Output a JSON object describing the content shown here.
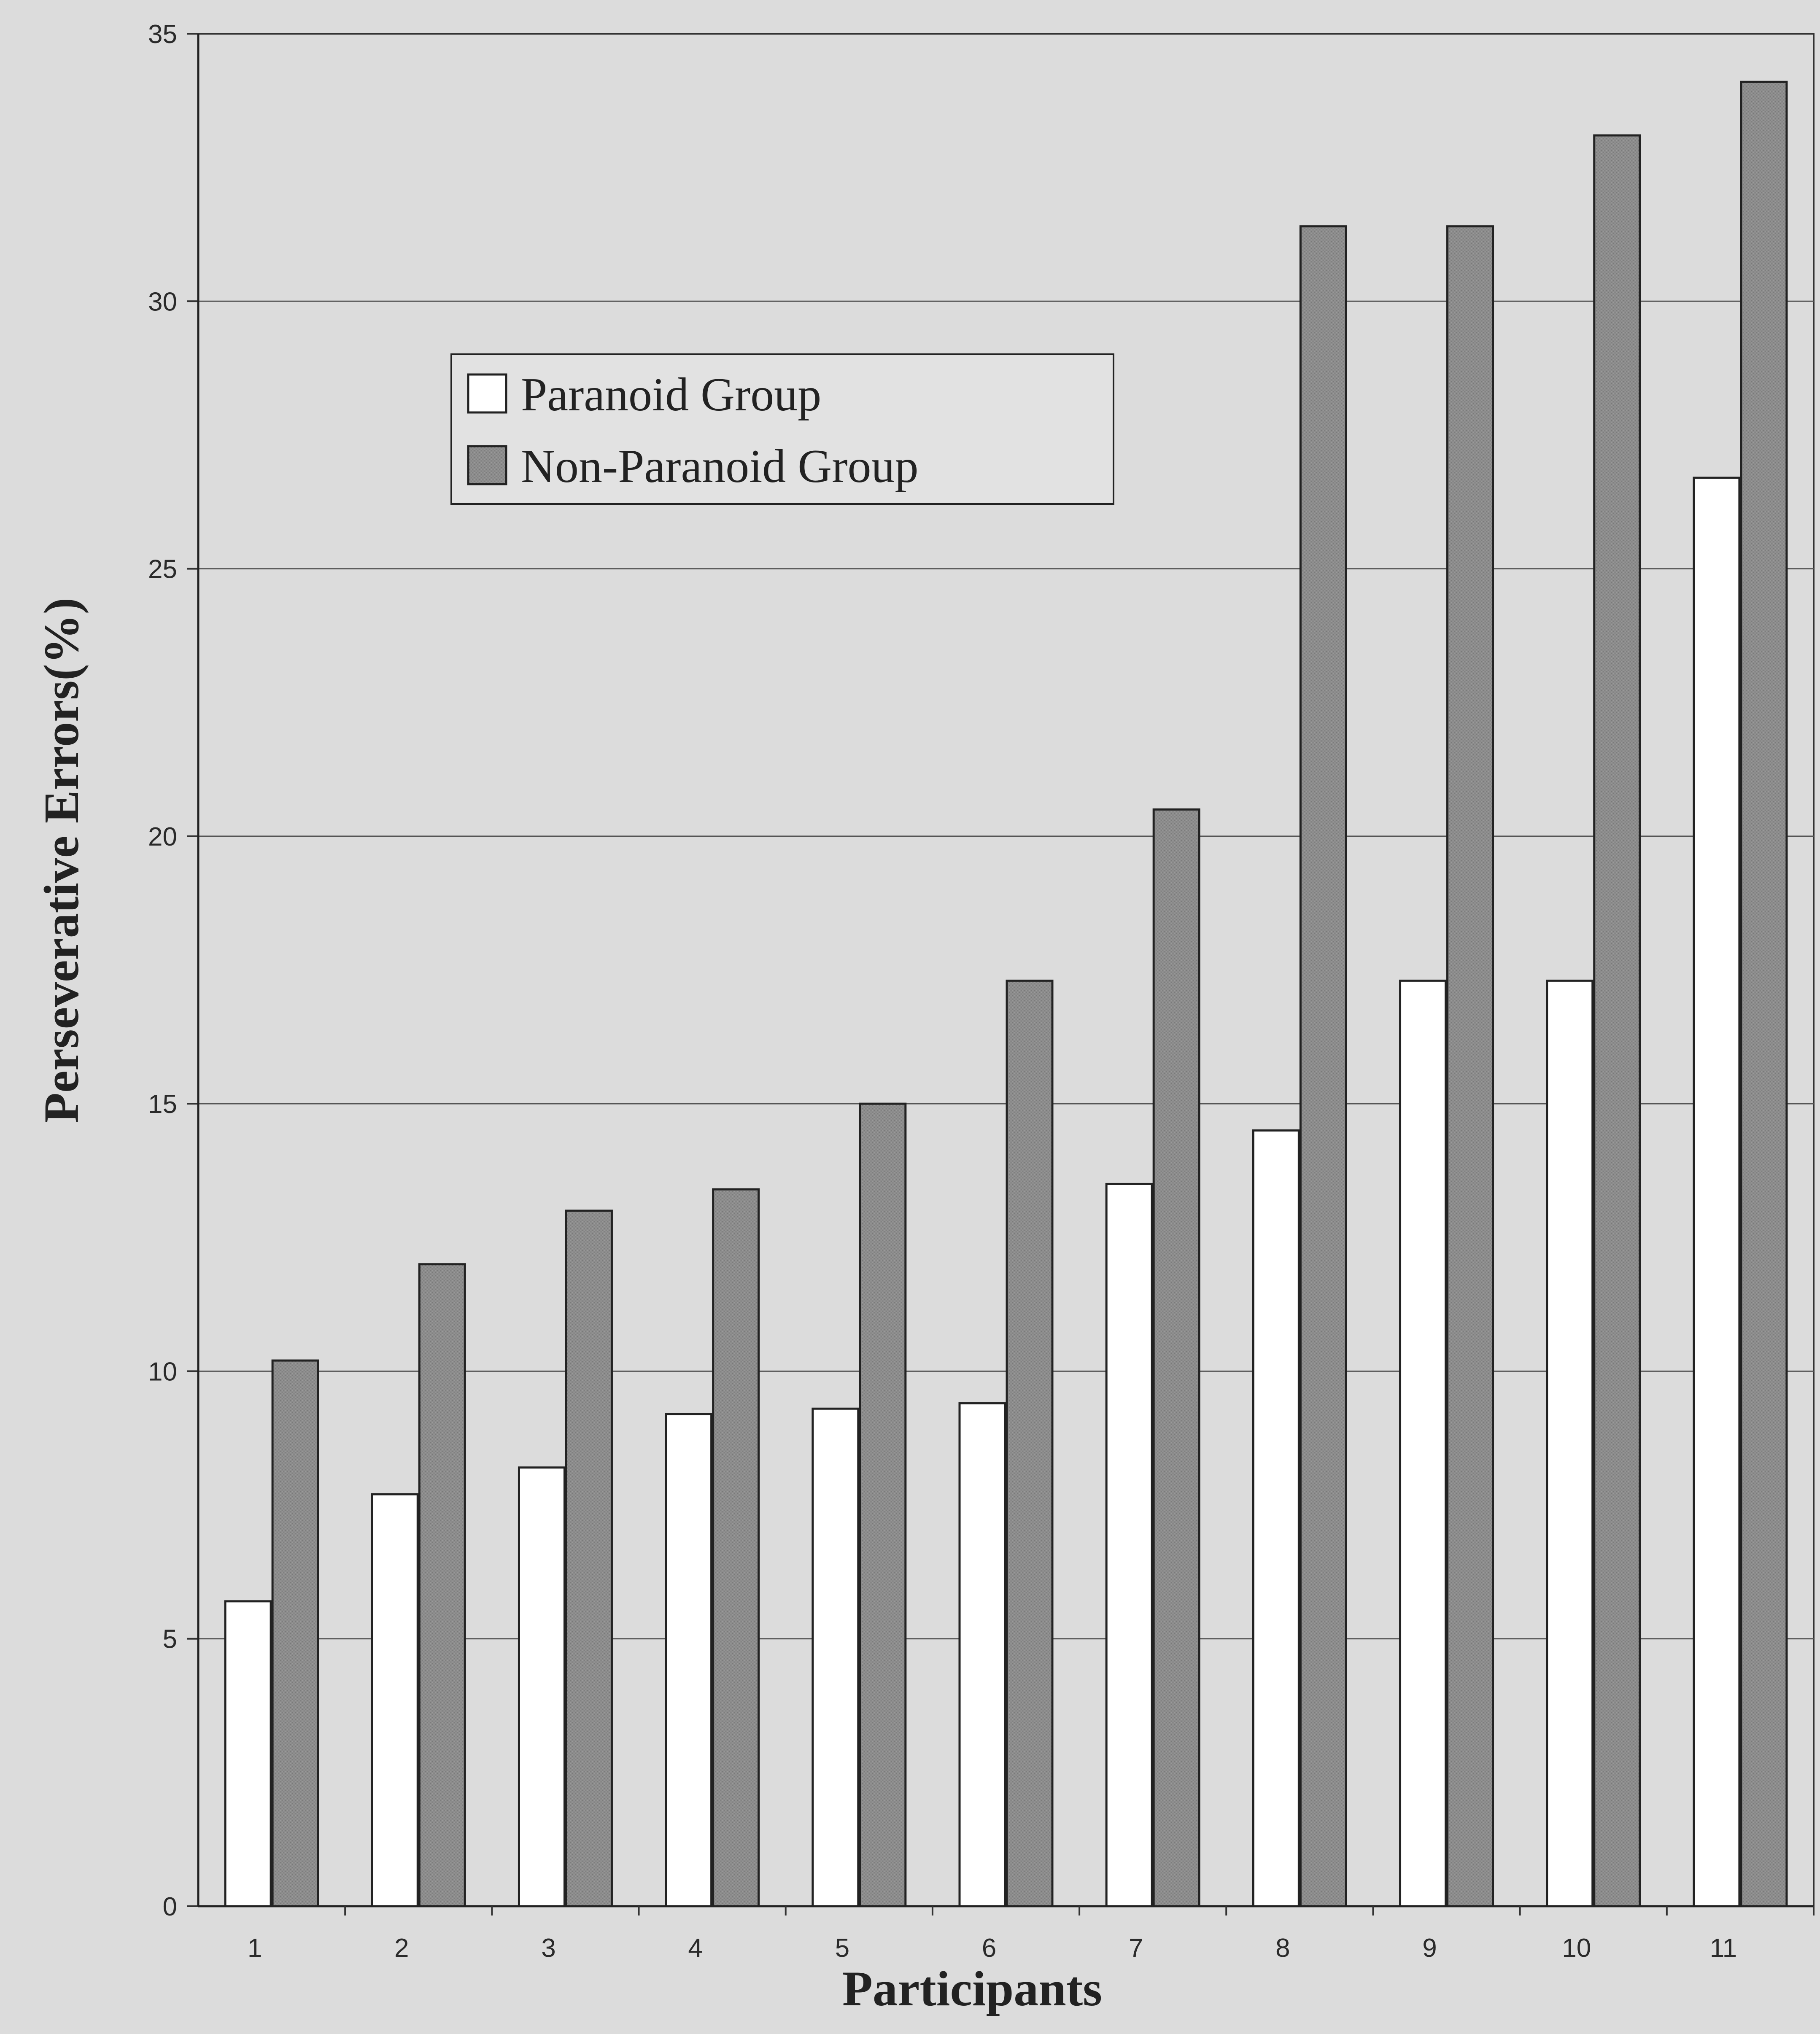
{
  "chart_data": {
    "type": "bar",
    "categories": [
      "1",
      "2",
      "3",
      "4",
      "5",
      "6",
      "7",
      "8",
      "9",
      "10",
      "11"
    ],
    "series": [
      {
        "name": "Paranoid Group",
        "values": [
          5.7,
          7.7,
          8.2,
          9.2,
          9.3,
          9.4,
          13.5,
          14.5,
          17.3,
          17.3,
          26.7
        ],
        "color": "#ffffff"
      },
      {
        "name": "Non-Paranoid Group",
        "values": [
          10.2,
          12.0,
          13.0,
          13.4,
          15.0,
          17.3,
          20.5,
          31.4,
          31.4,
          33.1,
          34.1
        ],
        "color": "#8c8c8c"
      }
    ],
    "title": "",
    "xlabel": "Participants",
    "ylabel": "Perseverative Errors(%)",
    "ylim": [
      0,
      35
    ],
    "yticks": [
      0,
      5,
      10,
      15,
      20,
      25,
      30,
      35
    ],
    "grid": true,
    "legend_position": "top-left"
  }
}
